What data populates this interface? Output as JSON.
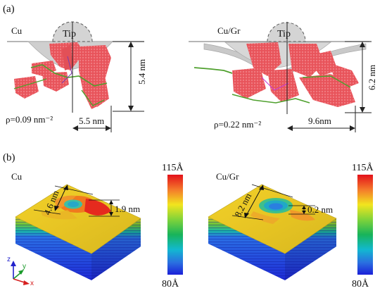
{
  "panels": {
    "a_label": "(a)",
    "b_label": "(b)"
  },
  "panel_a": {
    "left": {
      "title": "Cu",
      "tip": "Tip",
      "density": "ρ=0.09 nm⁻²",
      "width": "5.5 nm",
      "depth": "5.4 nm"
    },
    "right": {
      "title": "Cu/Gr",
      "tip": "Tip",
      "density": "ρ=0.22 nm⁻²",
      "width": "9.6nm",
      "depth": "6.2 nm"
    }
  },
  "panel_b": {
    "left": {
      "title": "Cu",
      "diameter": "4.6 nm",
      "pileup": "1.9 nm"
    },
    "right": {
      "title": "Cu/Gr",
      "diameter": "8.2 nm",
      "pileup": "0.2 nm"
    },
    "colorbar": {
      "max": "115Å",
      "min": "80Å",
      "colors": [
        "#d7191c",
        "#f46d43",
        "#fdae61",
        "#fee08b",
        "#d9ef8b",
        "#66bd63",
        "#1a9850",
        "#00bcd4",
        "#2c7bb6",
        "#1f1fd6"
      ]
    },
    "axes": {
      "z": "z",
      "y": "y",
      "x": "x"
    }
  },
  "colors": {
    "dislocation_red": "#e8535a",
    "dislocation_green": "#4fa02e",
    "surface_gray": "#c9c9c9",
    "tip_gray": "#d4d4d4"
  }
}
